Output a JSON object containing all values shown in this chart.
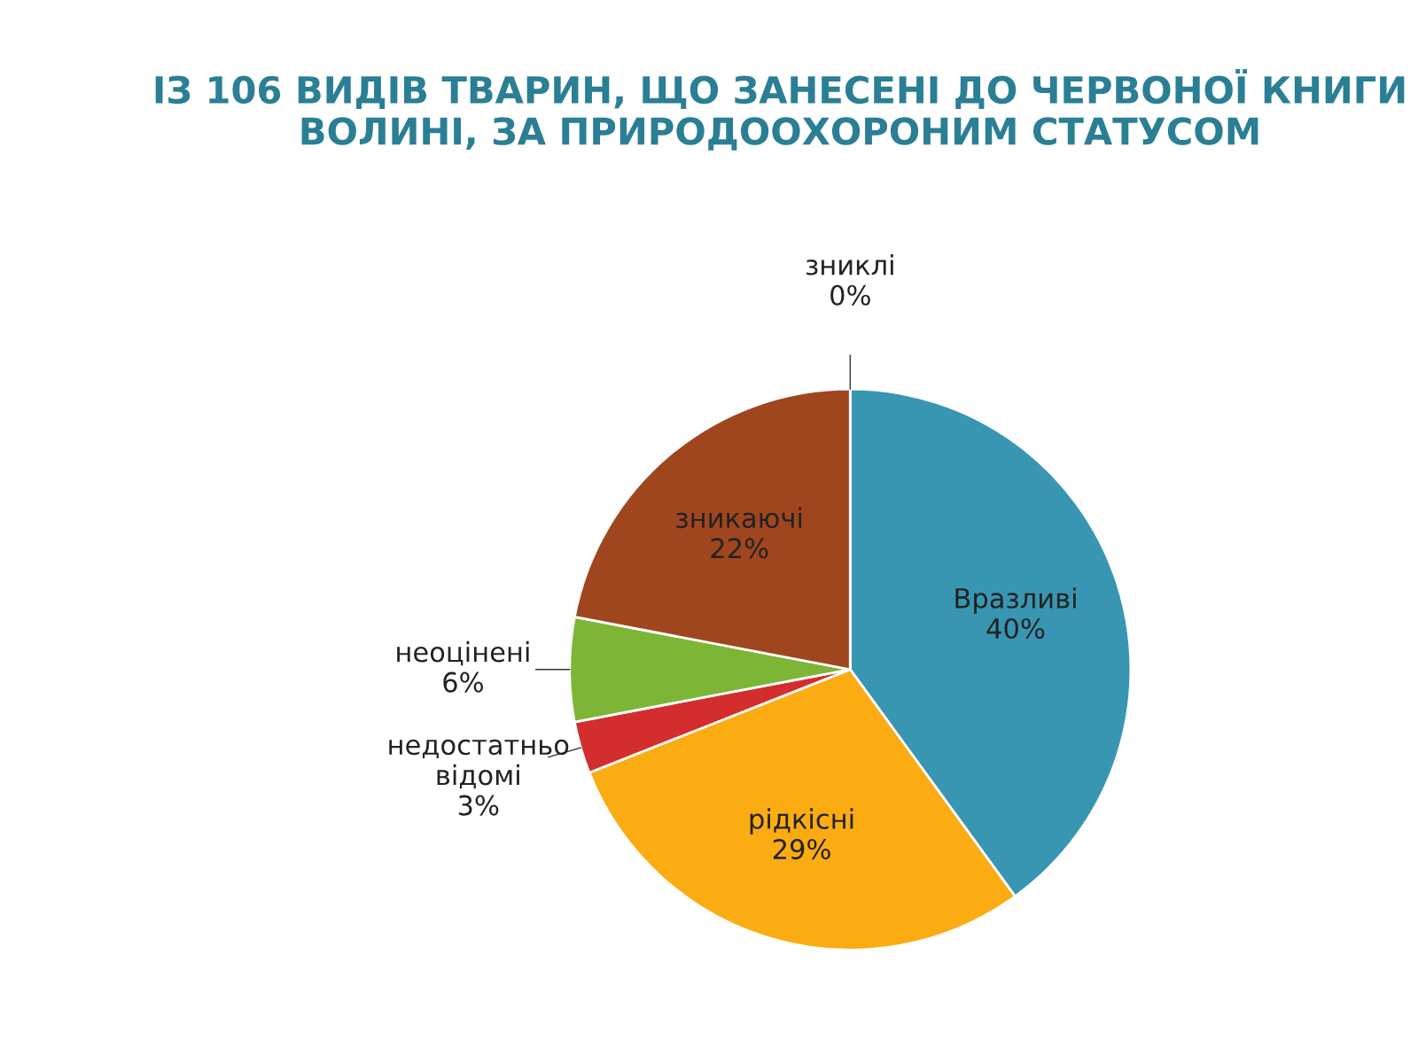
{
  "chart_data": {
    "type": "pie",
    "title": "ІЗ 106 ВИДІВ ТВАРИН, ЩО ЗАНЕСЕНІ ДО ЧЕРВОНОЇ КНИГИ ВОЛИНІ, ЗА ПРИРОДООХОРОНИМ СТАТУСОМ",
    "categories": [
      "Вразливі",
      "рідкісні",
      "недостатньо відомі",
      "неоцінені",
      "зникаючі",
      "зниклі"
    ],
    "values": [
      40,
      29,
      3,
      6,
      22,
      0
    ],
    "colors": [
      "#3996b2",
      "#fbac12",
      "#d42d2d",
      "#7db536",
      "#a0461f",
      "#e8641e"
    ],
    "value_labels": [
      "40%",
      "29%",
      "3%",
      "6%",
      "22%",
      "0%"
    ]
  }
}
